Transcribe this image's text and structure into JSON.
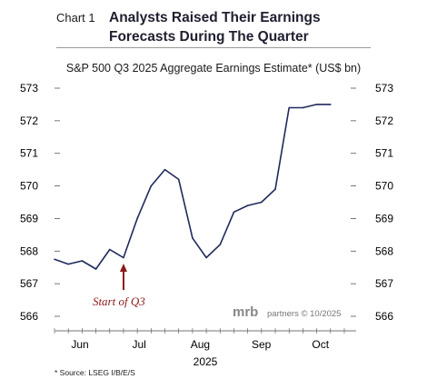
{
  "header": {
    "chart_number": "Chart 1",
    "headline_line1": "Analysts Raised Their Earnings",
    "headline_line2": "Forecasts During The Quarter"
  },
  "footer": {
    "source": "* Source: LSEG I/B/E/S",
    "watermark_brand": "mrb",
    "watermark_text": "partners © 10/2025"
  },
  "chart_data": {
    "type": "line",
    "title": "S&P 500 Q3 2025 Aggregate Earnings Estimate* (US$ bn)",
    "xlabel": "2025",
    "ylabel": "",
    "ylim": [
      566,
      573
    ],
    "y_ticks": [
      566,
      567,
      568,
      569,
      570,
      571,
      572,
      573
    ],
    "x_tick_labels": [
      "Jun",
      "Jul",
      "Aug",
      "Sep",
      "Oct"
    ],
    "x_tick_dates": [
      "2025-06-01",
      "2025-07-01",
      "2025-08-01",
      "2025-09-01",
      "2025-10-01"
    ],
    "xlim": [
      "2025-05-26",
      "2025-10-26"
    ],
    "grid": false,
    "colors": {
      "line": "#1f2a5c",
      "annotation": "#8b1a1a"
    },
    "annotation": {
      "text": "Start of Q3",
      "date": "2025-06-30",
      "value": 567.7
    },
    "series": [
      {
        "x": [
          "2025-05-26",
          "2025-06-02",
          "2025-06-09",
          "2025-06-16",
          "2025-06-23",
          "2025-06-30",
          "2025-07-07",
          "2025-07-14",
          "2025-07-21",
          "2025-07-28",
          "2025-08-04",
          "2025-08-11",
          "2025-08-18",
          "2025-08-25",
          "2025-09-01",
          "2025-09-08",
          "2025-09-15",
          "2025-09-22",
          "2025-09-29",
          "2025-10-06",
          "2025-10-13"
        ],
        "values": [
          567.75,
          567.6,
          567.7,
          567.45,
          568.05,
          567.8,
          569.0,
          570.0,
          570.5,
          570.2,
          568.4,
          567.8,
          568.2,
          569.2,
          569.4,
          569.5,
          569.9,
          572.4,
          572.4,
          572.5,
          572.5
        ]
      }
    ]
  }
}
